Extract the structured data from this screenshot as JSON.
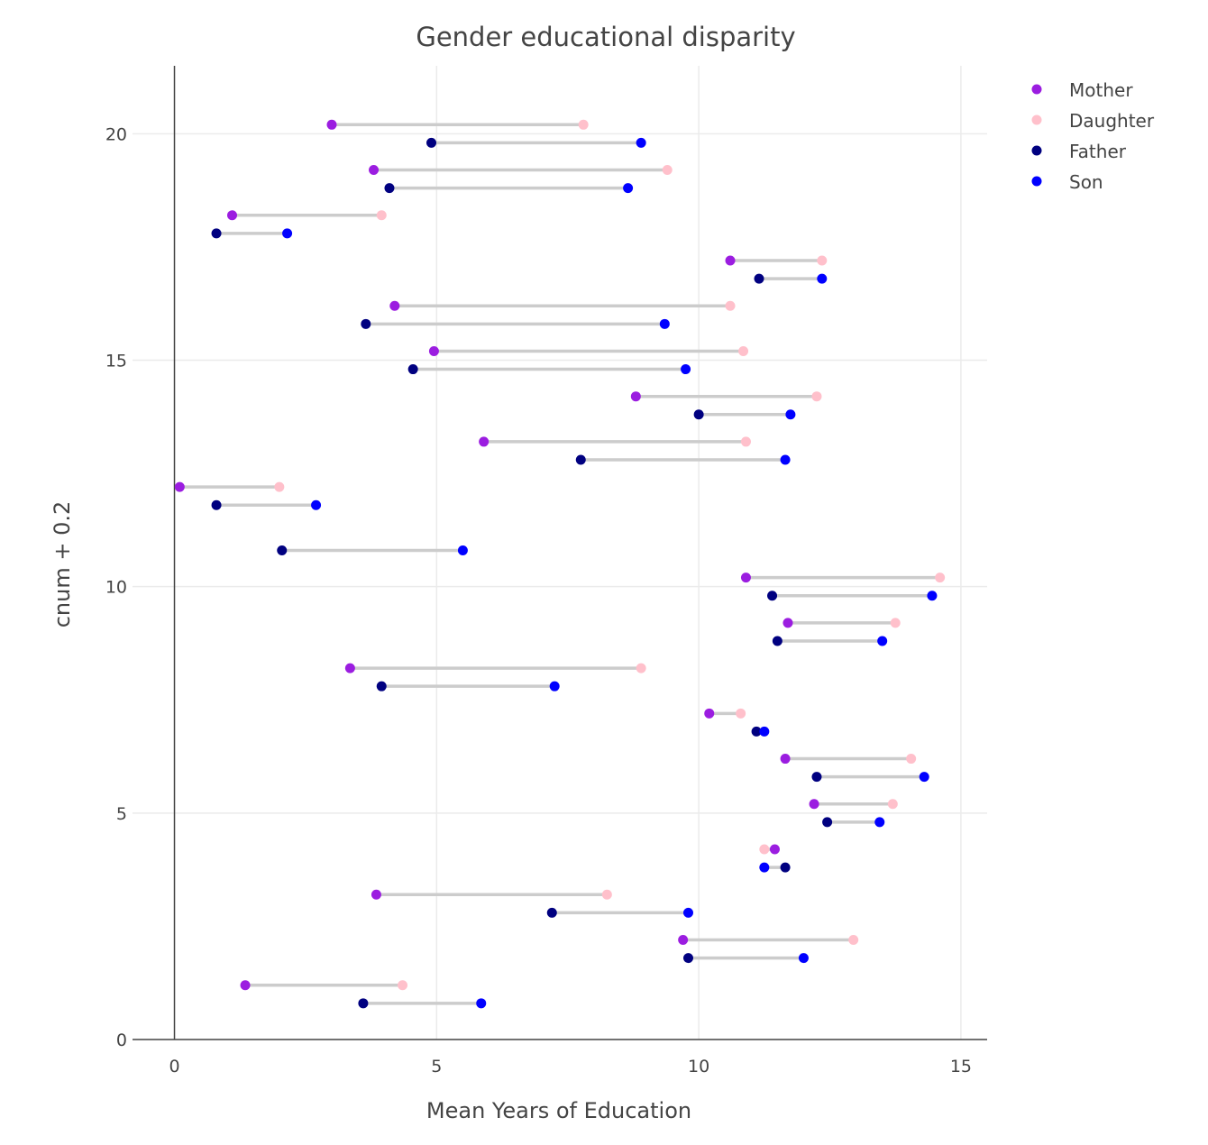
{
  "chart_data": {
    "type": "dumbbell",
    "title": "Gender educational disparity",
    "xlabel": "Mean Years of Education",
    "ylabel": "cnum + 0.2",
    "xlim": [
      -0.8,
      15.5
    ],
    "ylim": [
      0,
      21.5
    ],
    "xticks": [
      0,
      5,
      10,
      15
    ],
    "yticks": [
      0,
      5,
      10,
      15,
      20
    ],
    "legend": {
      "position": "top-right",
      "entries": [
        {
          "name": "Mother",
          "color": "#9b1de0"
        },
        {
          "name": "Daughter",
          "color": "#ffc0cb"
        },
        {
          "name": "Father",
          "color": "#000080"
        },
        {
          "name": "Son",
          "color": "#0000ff"
        }
      ]
    },
    "female_pairs": [
      {
        "y": 1.2,
        "mother": 1.35,
        "daughter": 4.35
      },
      {
        "y": 2.2,
        "mother": 9.7,
        "daughter": 12.95
      },
      {
        "y": 3.2,
        "mother": 3.85,
        "daughter": 8.25
      },
      {
        "y": 4.2,
        "mother": 11.45,
        "daughter": 11.25
      },
      {
        "y": 5.2,
        "mother": 12.2,
        "daughter": 13.7
      },
      {
        "y": 6.2,
        "mother": 11.65,
        "daughter": 14.05
      },
      {
        "y": 7.2,
        "mother": 10.2,
        "daughter": 10.8
      },
      {
        "y": 8.2,
        "mother": 3.35,
        "daughter": 8.9
      },
      {
        "y": 9.2,
        "mother": 11.7,
        "daughter": 13.75
      },
      {
        "y": 10.2,
        "mother": 10.9,
        "daughter": 14.6
      },
      {
        "y": 12.2,
        "mother": 0.1,
        "daughter": 2.0
      },
      {
        "y": 13.2,
        "mother": 5.9,
        "daughter": 10.9
      },
      {
        "y": 14.2,
        "mother": 8.8,
        "daughter": 12.25
      },
      {
        "y": 15.2,
        "mother": 4.95,
        "daughter": 10.85
      },
      {
        "y": 16.2,
        "mother": 4.2,
        "daughter": 10.6
      },
      {
        "y": 17.2,
        "mother": 10.6,
        "daughter": 12.35
      },
      {
        "y": 18.2,
        "mother": 1.1,
        "daughter": 3.95
      },
      {
        "y": 19.2,
        "mother": 3.8,
        "daughter": 9.4
      },
      {
        "y": 20.2,
        "mother": 3.0,
        "daughter": 7.8
      }
    ],
    "male_pairs": [
      {
        "y": 0.8,
        "father": 3.6,
        "son": 5.85
      },
      {
        "y": 1.8,
        "father": 9.8,
        "son": 12.0
      },
      {
        "y": 2.8,
        "father": 7.2,
        "son": 9.8
      },
      {
        "y": 3.8,
        "father": 11.65,
        "son": 11.25
      },
      {
        "y": 4.8,
        "father": 12.45,
        "son": 13.45
      },
      {
        "y": 5.8,
        "father": 12.25,
        "son": 14.3
      },
      {
        "y": 6.8,
        "father": 11.1,
        "son": 11.25
      },
      {
        "y": 7.8,
        "father": 3.95,
        "son": 7.25
      },
      {
        "y": 8.8,
        "father": 11.5,
        "son": 13.5
      },
      {
        "y": 9.8,
        "father": 11.4,
        "son": 14.45
      },
      {
        "y": 10.8,
        "father": 2.05,
        "son": 5.5
      },
      {
        "y": 11.8,
        "father": 0.8,
        "son": 2.7
      },
      {
        "y": 12.8,
        "father": 7.75,
        "son": 11.65
      },
      {
        "y": 13.8,
        "father": 10.0,
        "son": 11.75
      },
      {
        "y": 14.8,
        "father": 4.55,
        "son": 9.75
      },
      {
        "y": 15.8,
        "father": 3.65,
        "son": 9.35
      },
      {
        "y": 16.8,
        "father": 11.15,
        "son": 12.35
      },
      {
        "y": 17.8,
        "father": 0.8,
        "son": 2.15
      },
      {
        "y": 18.8,
        "father": 4.1,
        "son": 8.65
      },
      {
        "y": 19.8,
        "father": 4.9,
        "son": 8.9
      }
    ]
  }
}
